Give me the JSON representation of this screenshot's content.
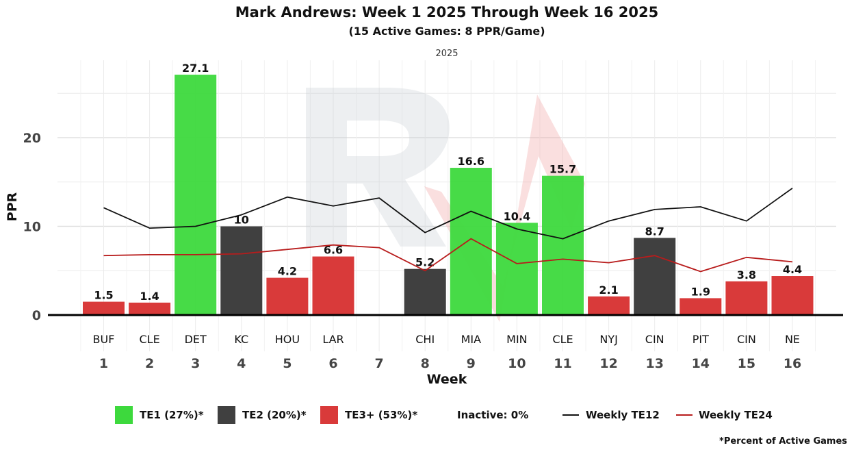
{
  "chart_data": {
    "type": "bar",
    "title": "Mark Andrews: Week 1 2025 Through Week 16 2025",
    "subtitle": "(15 Active Games: 8 PPR/Game)",
    "facet_label": "2025",
    "xlabel": "Week",
    "ylabel": "PPR",
    "ylim": [
      0,
      28.5
    ],
    "yticks": [
      0,
      10,
      20
    ],
    "weeks": [
      1,
      2,
      3,
      4,
      5,
      6,
      7,
      8,
      9,
      10,
      11,
      12,
      13,
      14,
      15,
      16
    ],
    "opponents": [
      "BUF",
      "CLE",
      "DET",
      "KC",
      "HOU",
      "LAR",
      "",
      "CHI",
      "MIA",
      "MIN",
      "CLE",
      "NYJ",
      "CIN",
      "PIT",
      "CIN",
      "NE"
    ],
    "values": [
      1.5,
      1.4,
      27.1,
      10,
      4.2,
      6.6,
      null,
      5.2,
      16.6,
      10.4,
      15.7,
      2.1,
      8.7,
      1.9,
      3.8,
      4.4
    ],
    "value_labels": [
      "1.5",
      "1.4",
      "27.1",
      "10",
      "4.2",
      "6.6",
      "",
      "5.2",
      "16.6",
      "10.4",
      "15.7",
      "2.1",
      "8.7",
      "1.9",
      "3.8",
      "4.4"
    ],
    "tiers": [
      "TE3+",
      "TE3+",
      "TE1",
      "TE2",
      "TE3+",
      "TE3+",
      "",
      "TE2",
      "TE1",
      "TE1",
      "TE1",
      "TE3+",
      "TE2",
      "TE3+",
      "TE3+",
      "TE3+"
    ],
    "tier_colors": {
      "TE1": "#3dd93d",
      "TE2": "#404040",
      "TE3+": "#d93a3a"
    },
    "lines": [
      {
        "name": "Weekly TE12",
        "color": "#111111",
        "values": [
          12.1,
          9.8,
          10.0,
          11.3,
          13.3,
          12.3,
          13.2,
          9.3,
          11.7,
          9.7,
          8.6,
          10.6,
          11.9,
          12.2,
          10.6,
          14.3
        ]
      },
      {
        "name": "Weekly TE24",
        "color": "#b81c1c",
        "values": [
          6.7,
          6.8,
          6.8,
          6.9,
          7.4,
          7.9,
          7.6,
          5.0,
          8.6,
          5.8,
          6.3,
          5.9,
          6.7,
          4.9,
          6.5,
          6.0
        ]
      }
    ],
    "legend": [
      {
        "label": "TE1 (27%)*",
        "kind": "box",
        "color": "#3dd93d"
      },
      {
        "label": "TE2 (20%)*",
        "kind": "box",
        "color": "#404040"
      },
      {
        "label": "TE3+ (53%)*",
        "kind": "box",
        "color": "#d93a3a"
      },
      {
        "label": "Inactive: 0%",
        "kind": "text"
      },
      {
        "label": "Weekly TE12",
        "kind": "line",
        "color": "#111111"
      },
      {
        "label": "Weekly TE24",
        "kind": "line",
        "color": "#b81c1c"
      }
    ],
    "legend_position": "bottom",
    "footnote": "*Percent of Active Games"
  }
}
